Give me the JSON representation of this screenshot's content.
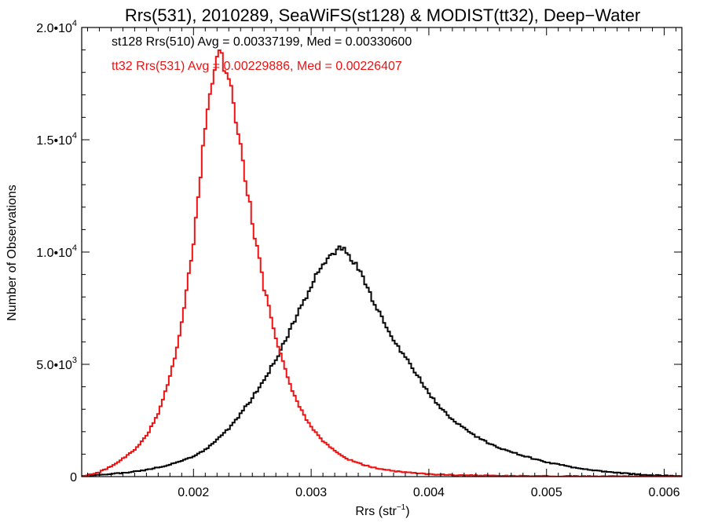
{
  "chart_data": {
    "type": "line",
    "title": "Rrs(531), 2010289, SeaWiFS(st128) & MODIST(tt32), Deep−Water",
    "xlabel": {
      "base": "Rrs (str",
      "sup": "−1",
      "tail": ")"
    },
    "ylabel": "Number of Observations",
    "xlim": [
      0.00105,
      0.00615
    ],
    "ylim": [
      0,
      20000
    ],
    "x_ticks": [
      {
        "value": 0.002,
        "label": "0.002"
      },
      {
        "value": 0.003,
        "label": "0.003"
      },
      {
        "value": 0.004,
        "label": "0.004"
      },
      {
        "value": 0.005,
        "label": "0.005"
      },
      {
        "value": 0.006,
        "label": "0.006"
      }
    ],
    "y_ticks": [
      {
        "value": 0,
        "base": "0",
        "exp": ""
      },
      {
        "value": 5000,
        "base": "5.0•10",
        "exp": "3"
      },
      {
        "value": 10000,
        "base": "1.0•10",
        "exp": "4"
      },
      {
        "value": 15000,
        "base": "1.5•10",
        "exp": "4"
      },
      {
        "value": 20000,
        "base": "2.0•10",
        "exp": "4"
      }
    ],
    "annotations": [
      {
        "text": "st128 Rrs(510) Avg = 0.00337199, Med = 0.00330600",
        "color": "#000000"
      },
      {
        "text": "tt32 Rrs(531) Avg = 0.00229886, Med = 0.00226407",
        "color": "#ee1111"
      }
    ],
    "series": [
      {
        "color": "#000000",
        "x": [
          0.00105,
          0.0012,
          0.0014,
          0.0016,
          0.0018,
          0.002,
          0.0021,
          0.0022,
          0.0023,
          0.0024,
          0.0025,
          0.0026,
          0.0027,
          0.0028,
          0.0029,
          0.003,
          0.0031,
          0.0032,
          0.00325,
          0.0033,
          0.0034,
          0.0035,
          0.0036,
          0.0037,
          0.0038,
          0.0039,
          0.004,
          0.0041,
          0.0042,
          0.0043,
          0.0044,
          0.0045,
          0.0046,
          0.0048,
          0.005,
          0.0052,
          0.0054,
          0.0056,
          0.0058,
          0.006,
          0.00615
        ],
        "y": [
          40,
          80,
          160,
          300,
          520,
          900,
          1200,
          1650,
          2150,
          2800,
          3500,
          4300,
          5200,
          6300,
          7400,
          8500,
          9400,
          10000,
          10200,
          10100,
          9300,
          8100,
          7100,
          6100,
          5300,
          4500,
          3700,
          3050,
          2550,
          2150,
          1800,
          1520,
          1280,
          920,
          650,
          430,
          280,
          170,
          90,
          40,
          20
        ]
      },
      {
        "color": "#ee1111",
        "x": [
          0.00105,
          0.0011,
          0.0012,
          0.0013,
          0.0014,
          0.0015,
          0.0016,
          0.0017,
          0.0018,
          0.0019,
          0.002,
          0.00205,
          0.0021,
          0.00215,
          0.0022,
          0.00222,
          0.00225,
          0.0023,
          0.00235,
          0.0024,
          0.0025,
          0.0026,
          0.0027,
          0.0028,
          0.0029,
          0.003,
          0.0031,
          0.0032,
          0.0033,
          0.0034,
          0.0035,
          0.0036,
          0.0037,
          0.0038,
          0.004,
          0.0042,
          0.0045,
          0.005,
          0.0055,
          0.006,
          0.00615
        ],
        "y": [
          30,
          60,
          200,
          450,
          800,
          1200,
          1800,
          2800,
          4400,
          6800,
          10300,
          13000,
          15500,
          17500,
          18600,
          18900,
          18500,
          17800,
          16300,
          14700,
          11400,
          8400,
          6200,
          4400,
          3100,
          2200,
          1600,
          1150,
          800,
          600,
          440,
          330,
          250,
          190,
          110,
          70,
          40,
          20,
          10,
          5,
          5
        ]
      }
    ]
  }
}
